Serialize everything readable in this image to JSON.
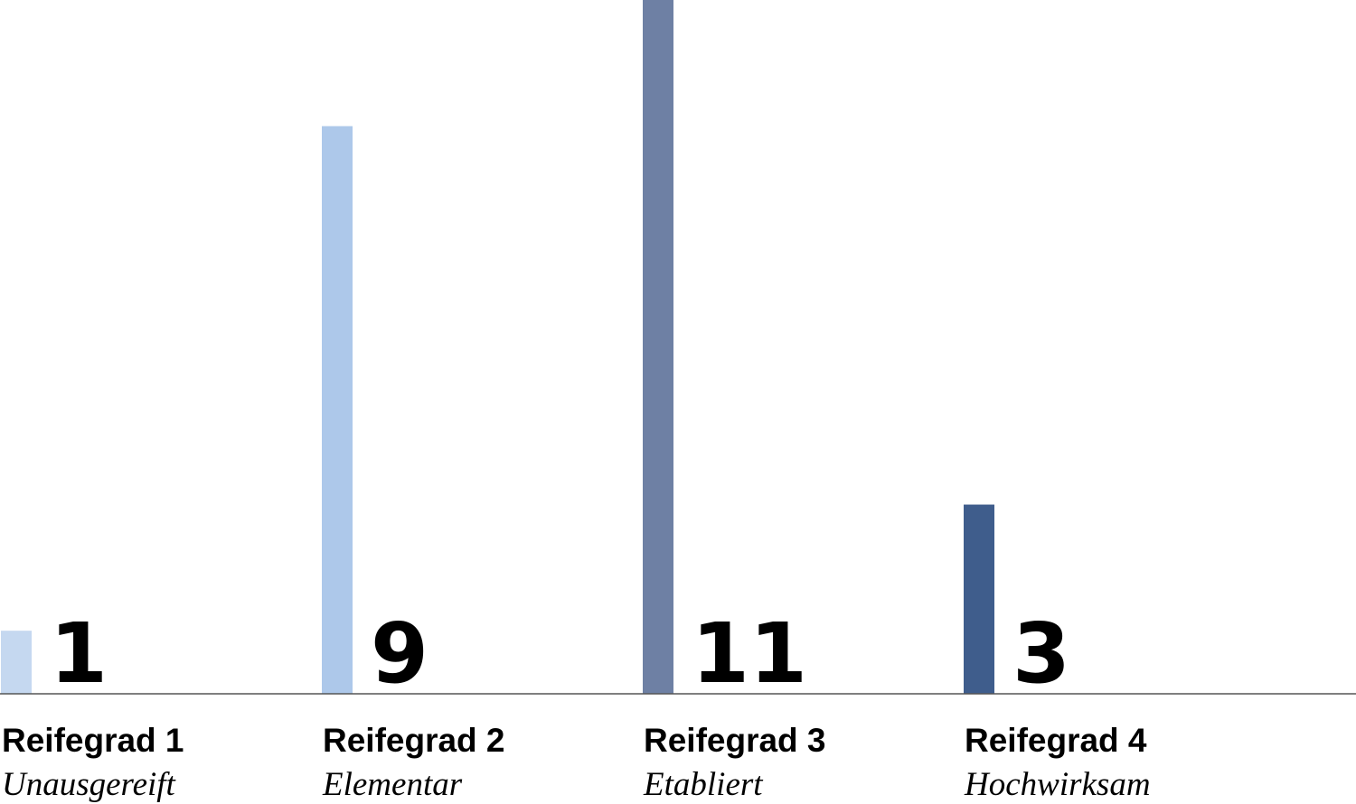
{
  "chart_data": {
    "type": "bar",
    "categories": [
      "Reifegrad 1",
      "Reifegrad 2",
      "Reifegrad 3",
      "Reifegrad 4"
    ],
    "category_descriptions": [
      "Unausgereift",
      "Elementar",
      "Etabliert",
      "Hochwirksam"
    ],
    "values": [
      1,
      9,
      11,
      3
    ],
    "colors": [
      "#c5d8f0",
      "#adc8ea",
      "#6e80a4",
      "#3f5d8c"
    ],
    "ylim": [
      0,
      11
    ]
  }
}
